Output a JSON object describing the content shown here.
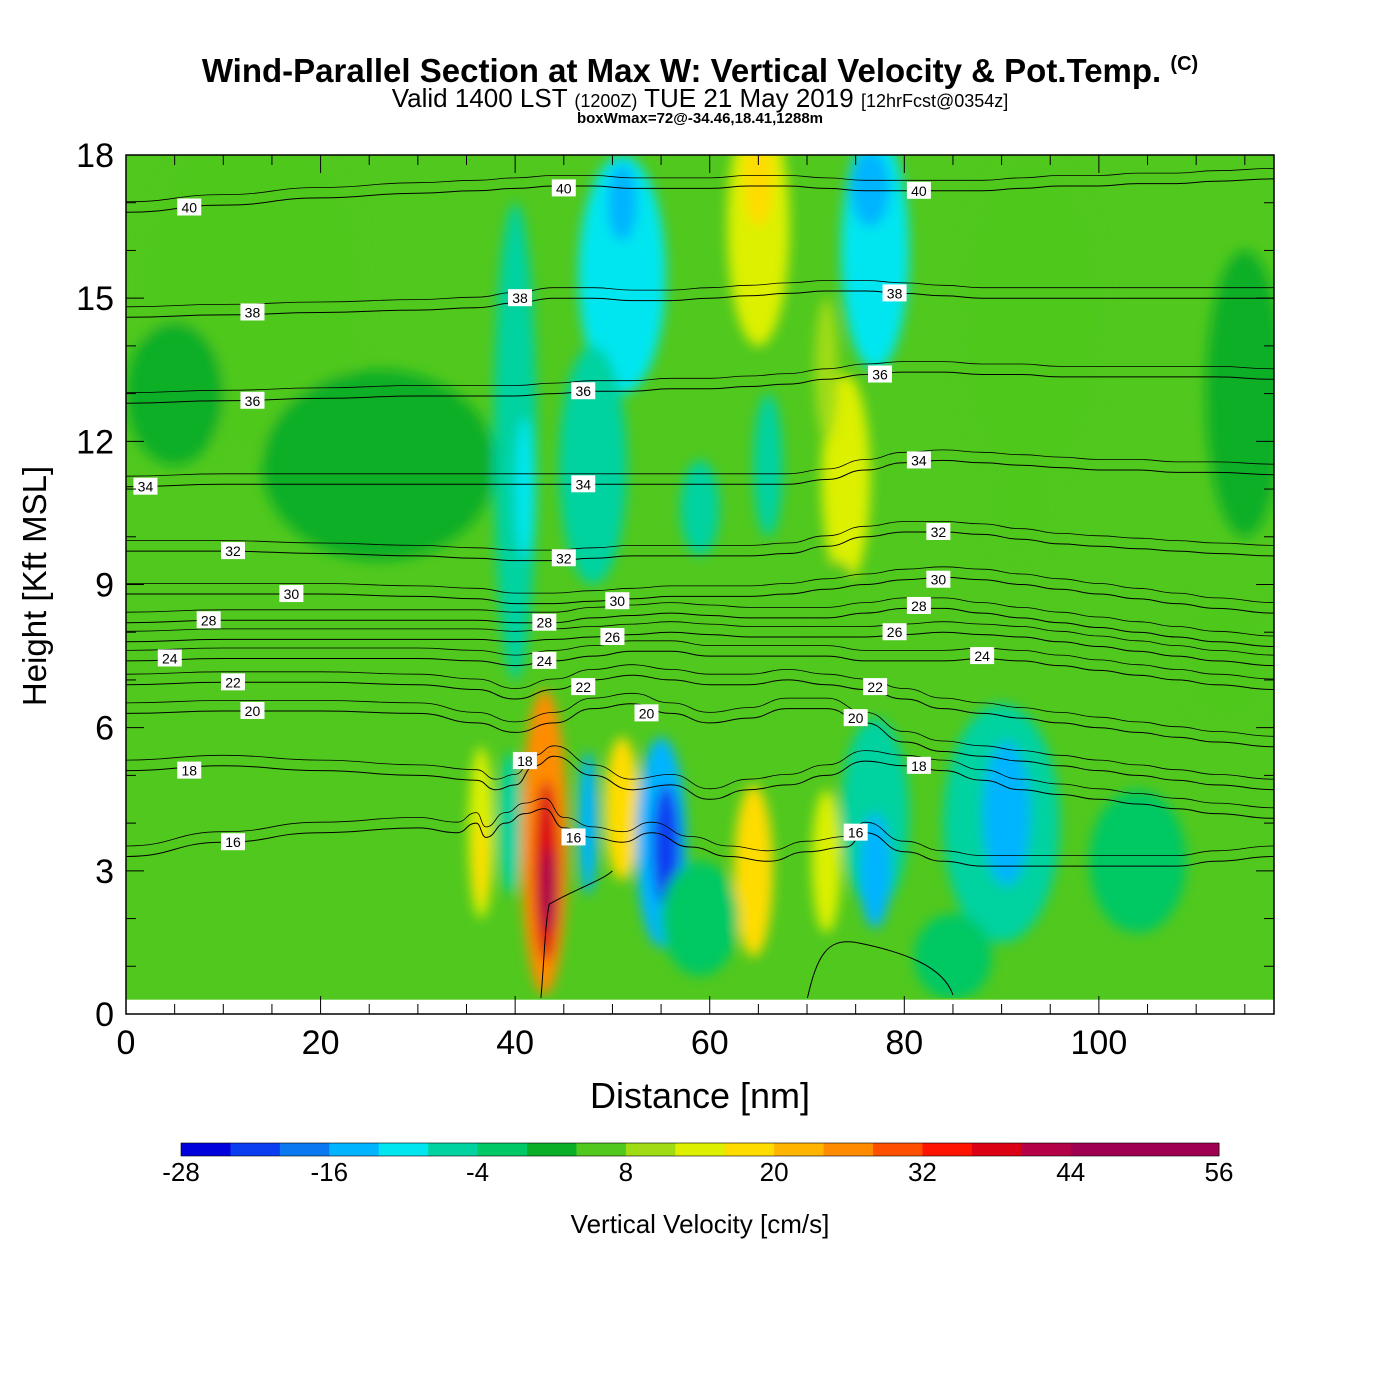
{
  "header": {
    "title": "Wind-Parallel Section at Max W: Vertical Velocity & Pot.Temp.",
    "copyright": "(C)",
    "valid_prefix": "Valid 1400 LST",
    "valid_utc": "(1200Z)",
    "valid_date": "TUE 21 May 2019",
    "forecast": "[12hrFcst@0354z]",
    "boxwmax": "boxWmax=72@-34.46,18.41,1288m"
  },
  "chart_data": {
    "type": "heatmap",
    "xlabel": "Distance [nm]",
    "ylabel": "Height [Kft MSL]",
    "xlim": [
      0,
      118
    ],
    "ylim": [
      0,
      18
    ],
    "x_ticks": [
      "0",
      "20",
      "40",
      "60",
      "80",
      "100"
    ],
    "y_ticks": [
      "0",
      "3",
      "6",
      "9",
      "12",
      "15",
      "18"
    ],
    "terrain_top_kft": 0.3,
    "colorbar": {
      "label": "Vertical Velocity [cm/s]",
      "tick_labels": [
        "-28",
        "-16",
        "-4",
        "8",
        "20",
        "32",
        "44",
        "56"
      ],
      "min": -28,
      "max": 56,
      "step": 4,
      "colors": [
        "#0000dd",
        "#0a3cf0",
        "#0a78f0",
        "#00b4ff",
        "#00e6f0",
        "#00d2a0",
        "#00c864",
        "#0aaf28",
        "#50c81e",
        "#a0dc14",
        "#dcf000",
        "#ffdc00",
        "#ffb400",
        "#ff8c00",
        "#ff5000",
        "#ff1400",
        "#dc0014",
        "#b40046",
        "#a00050"
      ]
    },
    "background_vertical_velocity": 4,
    "vertical_velocity_cells": [
      {
        "x": 13,
        "y": 15.2,
        "rx": 12,
        "ry": 3.5,
        "w": 7
      },
      {
        "x": 26,
        "y": 11.5,
        "rx": 12,
        "ry": 2.0,
        "w": 0
      },
      {
        "x": 5,
        "y": 13.0,
        "rx": 5,
        "ry": 1.5,
        "w": 0
      },
      {
        "x": 93,
        "y": 14.5,
        "rx": 8,
        "ry": 3.5,
        "w": 7
      },
      {
        "x": 115,
        "y": 13.0,
        "rx": 4,
        "ry": 3.0,
        "w": 0
      },
      {
        "x": 92,
        "y": 10.6,
        "rx": 4,
        "ry": 1.0,
        "w": 7
      },
      {
        "x": 113,
        "y": 7.5,
        "rx": 5,
        "ry": 1.5,
        "w": 7
      },
      {
        "x": 40,
        "y": 12.0,
        "rx": 2.2,
        "ry": 5.0,
        "w": -8
      },
      {
        "x": 41,
        "y": 11.0,
        "rx": 1.0,
        "ry": 1.5,
        "w": -10
      },
      {
        "x": 51,
        "y": 15.5,
        "rx": 4.5,
        "ry": 2.5,
        "w": -10
      },
      {
        "x": 51,
        "y": 17.0,
        "rx": 1.5,
        "ry": 0.8,
        "w": -14
      },
      {
        "x": 48,
        "y": 11.5,
        "rx": 3.5,
        "ry": 2.5,
        "w": -7
      },
      {
        "x": 59,
        "y": 10.6,
        "rx": 2.0,
        "ry": 1.0,
        "w": -6
      },
      {
        "x": 66,
        "y": 11.5,
        "rx": 1.5,
        "ry": 1.5,
        "w": -6
      },
      {
        "x": 77,
        "y": 16.0,
        "rx": 3.5,
        "ry": 2.5,
        "w": -10
      },
      {
        "x": 76.5,
        "y": 17.3,
        "rx": 2.0,
        "ry": 0.8,
        "w": -14
      },
      {
        "x": 65,
        "y": 16.5,
        "rx": 3.2,
        "ry": 2.5,
        "w": 13
      },
      {
        "x": 65,
        "y": 17.5,
        "rx": 1.5,
        "ry": 1.0,
        "w": 19
      },
      {
        "x": 74,
        "y": 11.2,
        "rx": 2.5,
        "ry": 2.2,
        "w": 12
      },
      {
        "x": 72,
        "y": 13.5,
        "rx": 1.2,
        "ry": 1.5,
        "w": 9
      },
      {
        "x": 73,
        "y": 8.5,
        "rx": 2.5,
        "ry": 1.0,
        "w": 7
      },
      {
        "x": 36.5,
        "y": 3.8,
        "rx": 1.3,
        "ry": 1.8,
        "w": 12
      },
      {
        "x": 36.5,
        "y": 3.2,
        "rx": 0.7,
        "ry": 0.9,
        "w": 18
      },
      {
        "x": 39.5,
        "y": 4.0,
        "rx": 1.2,
        "ry": 1.5,
        "w": -7
      },
      {
        "x": 43,
        "y": 3.6,
        "rx": 2.4,
        "ry": 3.2,
        "w": 24
      },
      {
        "x": 43.2,
        "y": 3.0,
        "rx": 1.3,
        "ry": 1.9,
        "w": 38
      },
      {
        "x": 43.4,
        "y": 2.6,
        "rx": 0.7,
        "ry": 0.9,
        "w": 44
      },
      {
        "x": 47.5,
        "y": 4.0,
        "rx": 1.0,
        "ry": 1.5,
        "w": -16
      },
      {
        "x": 51,
        "y": 4.3,
        "rx": 1.8,
        "ry": 1.5,
        "w": 16
      },
      {
        "x": 55,
        "y": 3.6,
        "rx": 2.6,
        "ry": 2.2,
        "w": -16
      },
      {
        "x": 55.5,
        "y": 3.5,
        "rx": 1.4,
        "ry": 1.3,
        "w": -24
      },
      {
        "x": 64.5,
        "y": 3.0,
        "rx": 2.0,
        "ry": 1.8,
        "w": 17
      },
      {
        "x": 72,
        "y": 3.2,
        "rx": 1.5,
        "ry": 1.5,
        "w": 15
      },
      {
        "x": 77,
        "y": 4.2,
        "rx": 3.5,
        "ry": 2.0,
        "w": -8
      },
      {
        "x": 77,
        "y": 3.0,
        "rx": 1.6,
        "ry": 1.2,
        "w": -14
      },
      {
        "x": 90,
        "y": 4.0,
        "rx": 6.0,
        "ry": 2.5,
        "w": -8
      },
      {
        "x": 90.5,
        "y": 4.2,
        "rx": 2.4,
        "ry": 1.5,
        "w": -16
      },
      {
        "x": 104,
        "y": 3.2,
        "rx": 5.0,
        "ry": 1.5,
        "w": -4
      },
      {
        "x": 85,
        "y": 1.2,
        "rx": 4.0,
        "ry": 0.9,
        "w": -4
      },
      {
        "x": 59,
        "y": 2.0,
        "rx": 4.0,
        "ry": 1.2,
        "w": -3
      }
    ],
    "theta_contours": [
      {
        "label": "16",
        "x": [
          0,
          10,
          20,
          30,
          34,
          36,
          37,
          39,
          41,
          43,
          45,
          48,
          51,
          54,
          58,
          62,
          66,
          70,
          74,
          76,
          80,
          84,
          88,
          92,
          96,
          100,
          104,
          108,
          112,
          118
        ],
        "y": [
          3.3,
          3.6,
          3.8,
          3.9,
          3.8,
          4.0,
          3.7,
          4.0,
          4.2,
          4.3,
          3.9,
          3.7,
          3.6,
          3.8,
          3.5,
          3.3,
          3.2,
          3.4,
          3.5,
          3.8,
          3.4,
          3.2,
          3.1,
          3.1,
          3.1,
          3.1,
          3.1,
          3.1,
          3.2,
          3.3
        ],
        "lx": 11,
        "ly": 3.6
      },
      {
        "label": "18",
        "x": [
          0,
          10,
          20,
          30,
          36,
          38,
          40,
          42,
          44,
          48,
          52,
          56,
          60,
          64,
          68,
          72,
          76,
          80,
          84,
          88,
          92,
          96,
          100,
          104,
          108,
          112,
          118
        ],
        "y": [
          5.1,
          5.2,
          5.1,
          5.0,
          4.9,
          4.7,
          4.8,
          5.2,
          5.4,
          5.0,
          4.7,
          4.8,
          4.5,
          4.7,
          4.8,
          5.0,
          5.3,
          5.2,
          5.1,
          4.9,
          4.7,
          4.6,
          4.5,
          4.4,
          4.3,
          4.2,
          4.1
        ],
        "lx": 6.5,
        "ly": 5.1
      },
      {
        "label": "20",
        "x": [
          0,
          10,
          20,
          30,
          36,
          40,
          44,
          48,
          52,
          56,
          60,
          64,
          68,
          72,
          76,
          80,
          84,
          88,
          92,
          96,
          100,
          104,
          108,
          112,
          118
        ],
        "y": [
          6.3,
          6.35,
          6.35,
          6.3,
          6.1,
          5.9,
          6.1,
          6.4,
          6.5,
          6.3,
          6.1,
          6.2,
          6.4,
          6.4,
          6.1,
          5.7,
          5.5,
          5.4,
          5.3,
          5.2,
          5.1,
          5.0,
          4.9,
          4.8,
          4.7
        ],
        "lx": 13,
        "ly": 6.35
      },
      {
        "label": "22",
        "x": [
          0,
          10,
          20,
          30,
          36,
          40,
          44,
          48,
          52,
          56,
          60,
          64,
          68,
          72,
          76,
          80,
          84,
          88,
          92,
          96,
          100,
          104,
          108,
          112,
          118
        ],
        "y": [
          6.9,
          6.95,
          6.95,
          6.9,
          6.8,
          6.6,
          6.8,
          7.0,
          7.1,
          7.0,
          6.9,
          6.9,
          7.0,
          6.9,
          6.8,
          6.6,
          6.4,
          6.3,
          6.2,
          6.1,
          6.0,
          5.9,
          5.8,
          5.7,
          5.6
        ],
        "lx": 11,
        "ly": 6.95
      },
      {
        "label": "24",
        "x": [
          0,
          10,
          20,
          30,
          36,
          40,
          44,
          48,
          52,
          56,
          60,
          64,
          68,
          72,
          76,
          80,
          84,
          88,
          92,
          96,
          100,
          104,
          108,
          112,
          118
        ],
        "y": [
          7.4,
          7.45,
          7.45,
          7.45,
          7.4,
          7.3,
          7.4,
          7.5,
          7.6,
          7.6,
          7.5,
          7.5,
          7.5,
          7.5,
          7.4,
          7.4,
          7.4,
          7.45,
          7.4,
          7.3,
          7.2,
          7.1,
          7.0,
          6.9,
          6.8
        ],
        "lx": 4.5,
        "ly": 7.45
      },
      {
        "label": "26",
        "x": [
          0,
          10,
          20,
          30,
          36,
          40,
          44,
          48,
          52,
          56,
          60,
          64,
          68,
          72,
          76,
          80,
          84,
          88,
          92,
          96,
          100,
          104,
          108,
          112,
          118
        ],
        "y": [
          7.8,
          7.85,
          7.85,
          7.85,
          7.85,
          7.8,
          7.85,
          7.9,
          7.95,
          8.0,
          7.95,
          7.9,
          7.9,
          7.9,
          7.9,
          7.95,
          8.0,
          7.95,
          7.9,
          7.8,
          7.7,
          7.6,
          7.5,
          7.4,
          7.3
        ],
        "lx": 50,
        "ly": 7.9
      },
      {
        "label": "28",
        "x": [
          0,
          10,
          20,
          30,
          36,
          40,
          44,
          48,
          52,
          56,
          60,
          64,
          68,
          72,
          76,
          80,
          84,
          88,
          92,
          96,
          100,
          104,
          108,
          112,
          118
        ],
        "y": [
          8.2,
          8.25,
          8.25,
          8.25,
          8.25,
          8.2,
          8.2,
          8.3,
          8.35,
          8.4,
          8.35,
          8.3,
          8.3,
          8.3,
          8.4,
          8.5,
          8.5,
          8.4,
          8.3,
          8.2,
          8.1,
          8.0,
          7.9,
          7.8,
          7.7
        ],
        "lx": 8.5,
        "ly": 8.25
      },
      {
        "label": "30",
        "x": [
          0,
          10,
          20,
          30,
          36,
          40,
          44,
          48,
          52,
          56,
          60,
          64,
          68,
          72,
          76,
          80,
          84,
          88,
          92,
          96,
          100,
          104,
          108,
          112,
          118
        ],
        "y": [
          8.8,
          8.8,
          8.8,
          8.75,
          8.7,
          8.6,
          8.6,
          8.65,
          8.7,
          8.75,
          8.75,
          8.75,
          8.8,
          8.9,
          9.0,
          9.1,
          9.15,
          9.1,
          9.0,
          8.9,
          8.8,
          8.7,
          8.6,
          8.5,
          8.4
        ],
        "lx": 17,
        "ly": 8.8
      },
      {
        "label": "32",
        "x": [
          0,
          10,
          20,
          30,
          36,
          40,
          44,
          48,
          52,
          56,
          60,
          64,
          68,
          72,
          76,
          80,
          84,
          88,
          92,
          96,
          100,
          104,
          108,
          112,
          118
        ],
        "y": [
          9.7,
          9.7,
          9.65,
          9.6,
          9.55,
          9.5,
          9.5,
          9.55,
          9.6,
          9.6,
          9.6,
          9.6,
          9.65,
          9.8,
          10.0,
          10.1,
          10.1,
          10.05,
          9.95,
          9.85,
          9.8,
          9.75,
          9.7,
          9.65,
          9.6
        ],
        "lx": 11,
        "ly": 9.7
      },
      {
        "label": "34",
        "x": [
          0,
          10,
          20,
          30,
          36,
          40,
          44,
          48,
          52,
          56,
          60,
          64,
          68,
          72,
          76,
          80,
          84,
          88,
          92,
          96,
          100,
          104,
          108,
          112,
          118
        ],
        "y": [
          11.05,
          11.1,
          11.1,
          11.1,
          11.1,
          11.1,
          11.1,
          11.1,
          11.1,
          11.1,
          11.1,
          11.1,
          11.1,
          11.2,
          11.4,
          11.55,
          11.6,
          11.55,
          11.5,
          11.45,
          11.4,
          11.4,
          11.35,
          11.35,
          11.3
        ],
        "lx": 2,
        "ly": 11.05
      },
      {
        "label": "36",
        "x": [
          0,
          10,
          20,
          30,
          36,
          40,
          44,
          48,
          52,
          56,
          60,
          64,
          68,
          72,
          76,
          80,
          84,
          88,
          92,
          96,
          100,
          104,
          108,
          112,
          118
        ],
        "y": [
          12.8,
          12.85,
          12.9,
          12.95,
          12.95,
          12.95,
          13.0,
          13.05,
          13.05,
          13.1,
          13.1,
          13.15,
          13.2,
          13.3,
          13.4,
          13.45,
          13.45,
          13.4,
          13.4,
          13.35,
          13.35,
          13.35,
          13.35,
          13.35,
          13.3
        ],
        "lx": 13,
        "ly": 12.85
      },
      {
        "label": "38",
        "x": [
          0,
          10,
          20,
          30,
          36,
          40,
          44,
          48,
          52,
          56,
          60,
          64,
          68,
          72,
          76,
          80,
          84,
          88,
          92,
          96,
          100,
          104,
          108,
          112,
          118
        ],
        "y": [
          14.6,
          14.65,
          14.7,
          14.75,
          14.8,
          14.9,
          15.0,
          15.0,
          14.95,
          14.95,
          15.0,
          15.05,
          15.1,
          15.15,
          15.15,
          15.1,
          15.05,
          15.0,
          15.0,
          15.0,
          15.0,
          15.0,
          15.0,
          15.0,
          15.0
        ],
        "lx": 13,
        "ly": 14.7
      },
      {
        "label": "40",
        "x": [
          0,
          10,
          20,
          30,
          36,
          40,
          44,
          48,
          52,
          56,
          60,
          64,
          68,
          72,
          76,
          80,
          84,
          88,
          92,
          96,
          100,
          104,
          108,
          112,
          118
        ],
        "y": [
          16.8,
          16.95,
          17.1,
          17.2,
          17.25,
          17.3,
          17.35,
          17.35,
          17.3,
          17.3,
          17.3,
          17.35,
          17.35,
          17.3,
          17.25,
          17.25,
          17.25,
          17.25,
          17.3,
          17.35,
          17.35,
          17.4,
          17.4,
          17.45,
          17.5
        ],
        "lx": 6.5,
        "ly": 16.9
      }
    ],
    "extra_contour_labels": [
      {
        "label": "16",
        "x": 46,
        "y": 3.7
      },
      {
        "label": "16",
        "x": 75,
        "y": 3.8
      },
      {
        "label": "18",
        "x": 41,
        "y": 5.3
      },
      {
        "label": "18",
        "x": 81.5,
        "y": 5.2
      },
      {
        "label": "20",
        "x": 53.5,
        "y": 6.3
      },
      {
        "label": "20",
        "x": 75,
        "y": 6.2
      },
      {
        "label": "22",
        "x": 47,
        "y": 6.85
      },
      {
        "label": "22",
        "x": 77,
        "y": 6.85
      },
      {
        "label": "24",
        "x": 43,
        "y": 7.4
      },
      {
        "label": "24",
        "x": 88,
        "y": 7.5
      },
      {
        "label": "26",
        "x": 79,
        "y": 8.0
      },
      {
        "label": "28",
        "x": 43,
        "y": 8.2
      },
      {
        "label": "28",
        "x": 81.5,
        "y": 8.55
      },
      {
        "label": "30",
        "x": 50.5,
        "y": 8.65
      },
      {
        "label": "30",
        "x": 83.5,
        "y": 9.1
      },
      {
        "label": "32",
        "x": 45,
        "y": 9.55
      },
      {
        "label": "32",
        "x": 83.5,
        "y": 10.1
      },
      {
        "label": "34",
        "x": 47,
        "y": 11.1
      },
      {
        "label": "34",
        "x": 81.5,
        "y": 11.6
      },
      {
        "label": "36",
        "x": 47,
        "y": 13.05
      },
      {
        "label": "36",
        "x": 77.5,
        "y": 13.4
      },
      {
        "label": "38",
        "x": 40.5,
        "y": 15.0
      },
      {
        "label": "38",
        "x": 79,
        "y": 15.1
      },
      {
        "label": "40",
        "x": 45,
        "y": 17.3
      },
      {
        "label": "40",
        "x": 81.5,
        "y": 17.25
      }
    ]
  }
}
